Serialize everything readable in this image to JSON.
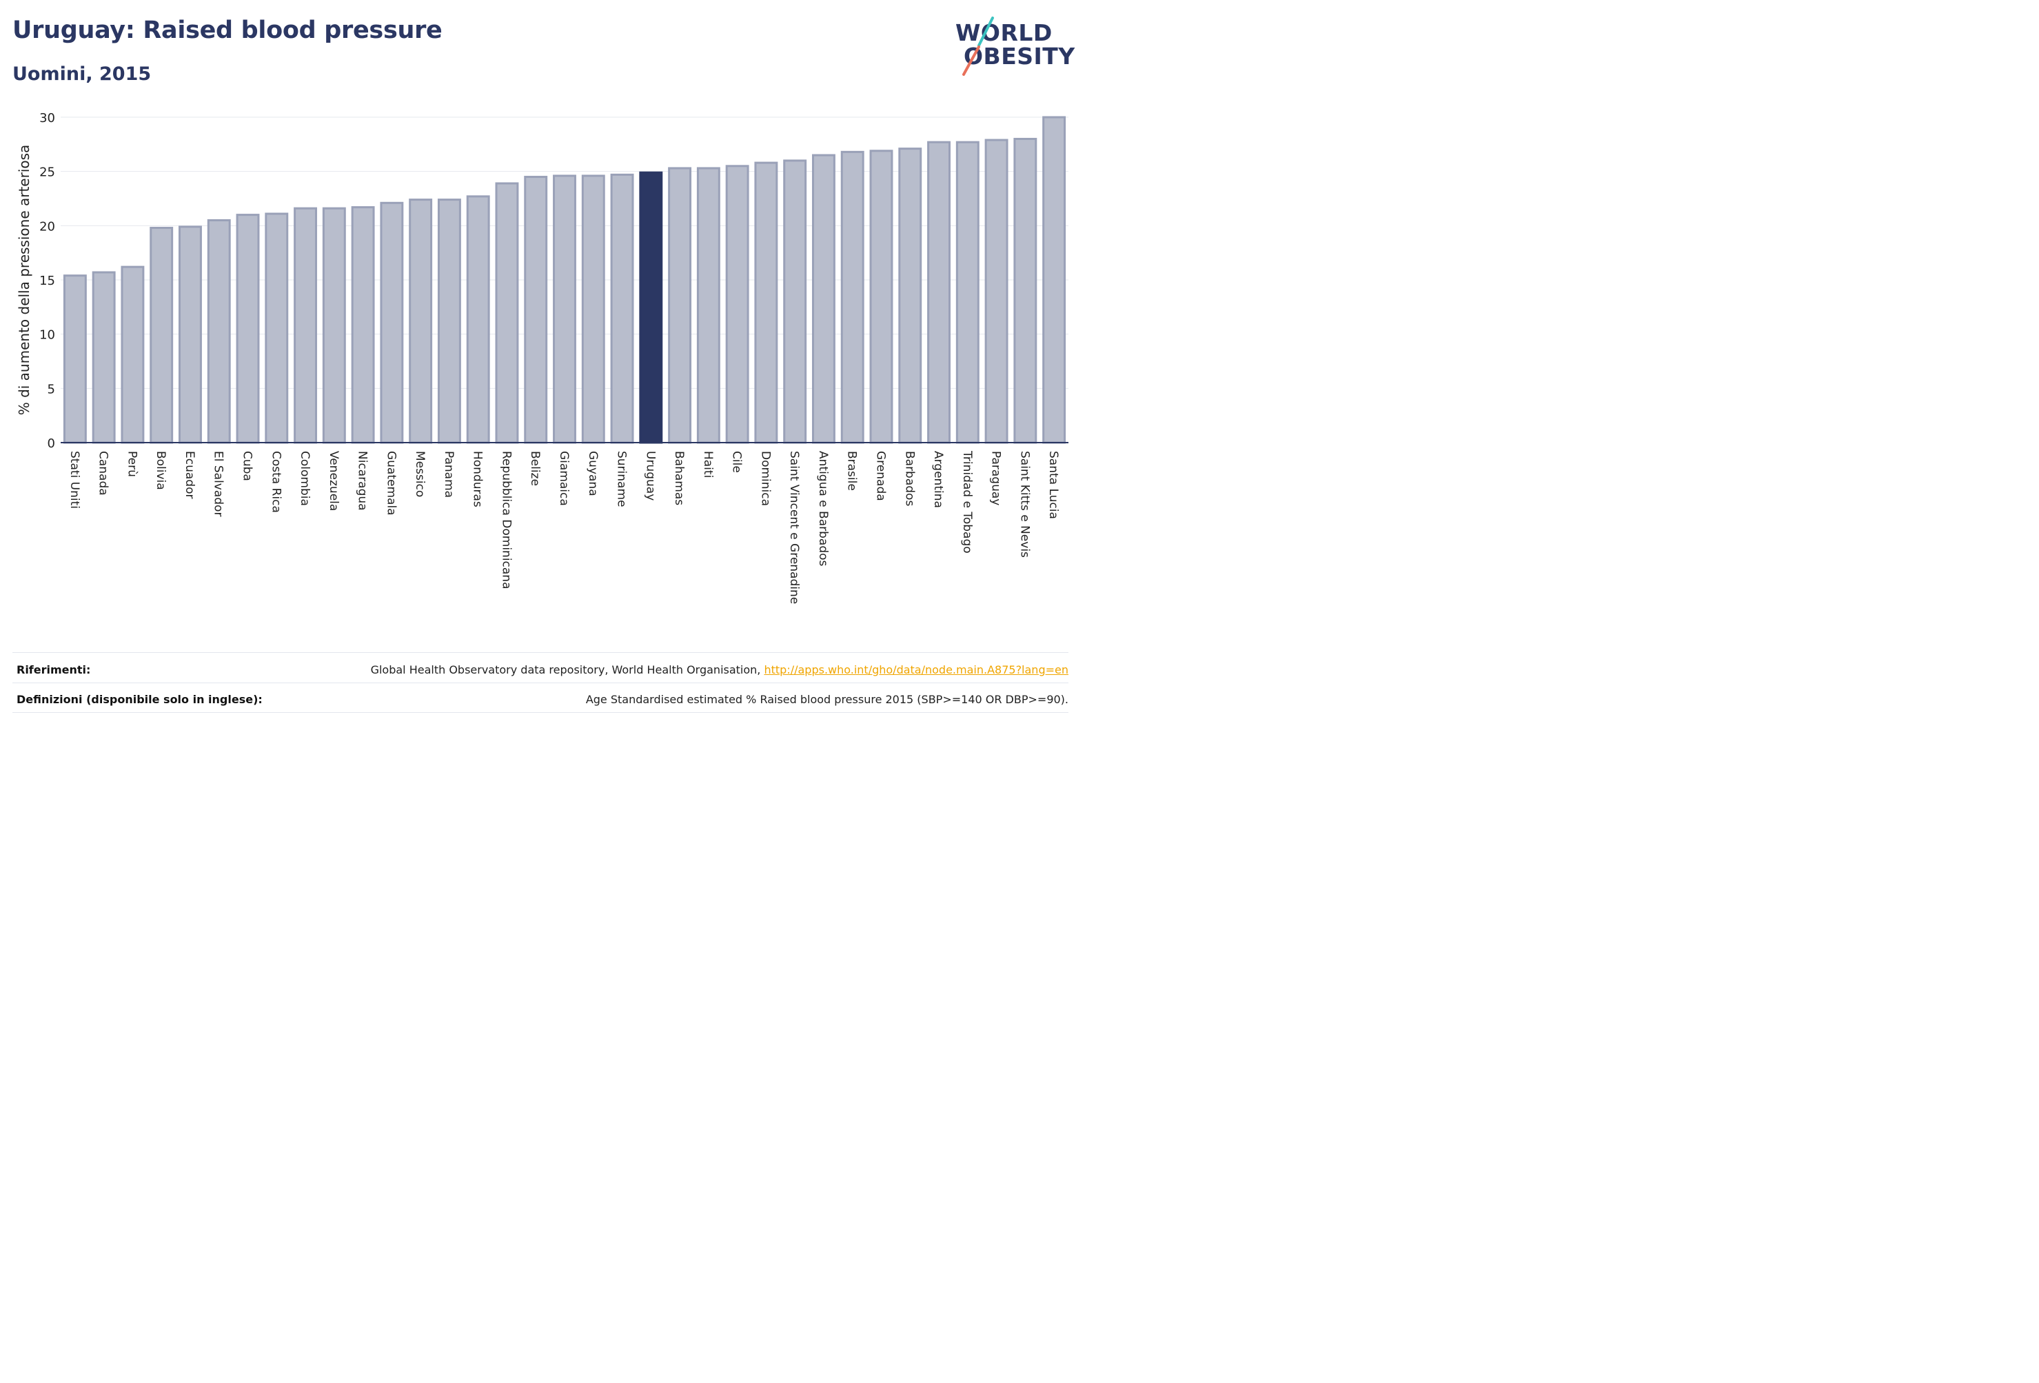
{
  "header": {
    "title": "Uruguay: Raised blood pressure",
    "subtitle": "Uomini, 2015"
  },
  "logo": {
    "line1": "WORLD",
    "line2": "OBESITY",
    "text_color": "#2b3763",
    "slash_colors": [
      "#3cc3c0",
      "#e8705a"
    ]
  },
  "colors": {
    "bar_default": "#b8bdcc",
    "bar_default_edge": "#9aa1b8",
    "bar_highlight": "#2b3763",
    "title": "#2b3763",
    "link": "#f0a500",
    "grid": "#e6e8ee"
  },
  "chart_data": {
    "type": "bar",
    "ylabel": "% di aumento della pressione arteriosa",
    "ylim": [
      0,
      30
    ],
    "yticks": [
      0,
      5,
      10,
      15,
      20,
      25,
      30
    ],
    "grid": true,
    "highlight": "Uruguay",
    "categories": [
      "Stati Uniti",
      "Canada",
      "Perù",
      "Bolivia",
      "Ecuador",
      "El Salvador",
      "Cuba",
      "Costa Rica",
      "Colombia",
      "Venezuela",
      "Nicaragua",
      "Guatemala",
      "Messico",
      "Panama",
      "Honduras",
      "Repubblica Dominicana",
      "Belize",
      "Giamaica",
      "Guyana",
      "Suriname",
      "Uruguay",
      "Bahamas",
      "Haiti",
      "Cile",
      "Dominica",
      "Saint Vincent e Grenadine",
      "Antigua e Barbados",
      "Brasile",
      "Grenada",
      "Barbados",
      "Argentina",
      "Trinidad e Tobago",
      "Paraguay",
      "Saint Kitts e Nevis",
      "Santa Lucia"
    ],
    "values": [
      15.4,
      15.7,
      16.2,
      19.8,
      19.9,
      20.5,
      21.0,
      21.1,
      21.6,
      21.6,
      21.7,
      22.1,
      22.4,
      22.4,
      22.7,
      23.9,
      24.5,
      24.6,
      24.6,
      24.7,
      24.9,
      25.3,
      25.3,
      25.5,
      25.8,
      26.0,
      26.5,
      26.8,
      26.9,
      27.1,
      27.7,
      27.7,
      27.9,
      28.0,
      30.0
    ]
  },
  "footer": {
    "references_label": "Riferimenti:",
    "references_text": "Global Health Observatory data repository, World Health Organisation, ",
    "references_link": "http://apps.who.int/gho/data/node.main.A875?lang=en",
    "definitions_label": "Definizioni (disponibile solo in inglese):",
    "definitions_text": "Age Standardised estimated % Raised blood pressure 2015 (SBP>=140 OR DBP>=90)."
  }
}
